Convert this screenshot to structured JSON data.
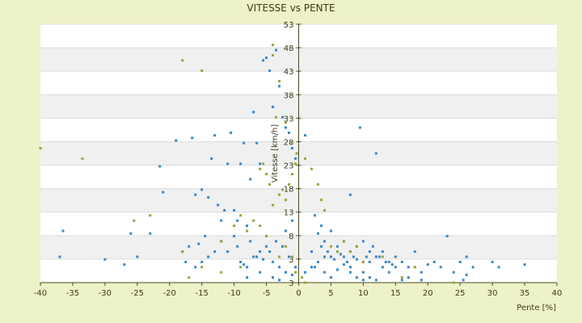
{
  "chart_data": {
    "type": "scatter",
    "title": "VITESSE vs PENTE",
    "xlabel": "Pente [%]",
    "ylabel": "Vitesse [km/h]",
    "xlim": [
      -40,
      40
    ],
    "ylim": [
      3,
      53
    ],
    "x_ticks": [
      "-40",
      "-35",
      "-30",
      "-25",
      "-20",
      "-15",
      "-10",
      "-5",
      "0",
      "5",
      "10",
      "15",
      "20",
      "25",
      "30",
      "35",
      "40"
    ],
    "y_ticks": [
      "3",
      "3",
      "8",
      "13",
      "18",
      "23",
      "28",
      "33",
      "38",
      "43",
      "48",
      "53"
    ],
    "grid": "horizontal bands",
    "legend": "none",
    "colors": {
      "series_blue": "#3a86c8",
      "series_olive": "#9aa33a",
      "band": "#f0f0f0",
      "plot_bg": "#ffffff",
      "page_bg": "#eef2c8"
    },
    "series": [
      {
        "color": "#3a86c8",
        "points": [
          [
            -36.5,
            13
          ],
          [
            -37,
            8
          ],
          [
            -30,
            7.5
          ],
          [
            -27,
            6.5
          ],
          [
            -26,
            12.5
          ],
          [
            -25,
            8
          ],
          [
            -23,
            12.5
          ],
          [
            -21.5,
            25.5
          ],
          [
            -21,
            20.5
          ],
          [
            -19,
            30.5
          ],
          [
            -18,
            9
          ],
          [
            -17.5,
            7
          ],
          [
            -16.5,
            31
          ],
          [
            -16,
            20
          ],
          [
            -15.5,
            10.5
          ],
          [
            -15,
            21
          ],
          [
            -14.5,
            12
          ],
          [
            -14,
            19.5
          ],
          [
            -13.5,
            27
          ],
          [
            -13,
            31.5
          ],
          [
            -12.5,
            18
          ],
          [
            -12,
            15
          ],
          [
            -11.5,
            17
          ],
          [
            -11,
            26
          ],
          [
            -10.5,
            32
          ],
          [
            -10,
            17
          ],
          [
            -9.5,
            15
          ],
          [
            -9,
            26
          ],
          [
            -8.5,
            30
          ],
          [
            -8,
            14
          ],
          [
            -7.5,
            23
          ],
          [
            -7,
            36
          ],
          [
            -6.5,
            30
          ],
          [
            -6,
            26
          ],
          [
            -5.5,
            46
          ],
          [
            -5,
            46.5
          ],
          [
            -4.5,
            44
          ],
          [
            -4,
            37
          ],
          [
            -3.5,
            48
          ],
          [
            -3,
            41
          ],
          [
            -2.5,
            35
          ],
          [
            -2,
            33
          ],
          [
            -1.5,
            32
          ],
          [
            -1,
            29
          ],
          [
            -0.5,
            27
          ],
          [
            -9,
            7
          ],
          [
            -8,
            6
          ],
          [
            -7,
            8
          ],
          [
            -6,
            9
          ],
          [
            -5,
            10
          ],
          [
            -4,
            7
          ],
          [
            -3,
            6
          ],
          [
            -2,
            5
          ],
          [
            -1,
            4.5
          ],
          [
            -12,
            11
          ],
          [
            -13,
            9
          ],
          [
            -14,
            8
          ],
          [
            -15,
            7
          ],
          [
            -16,
            6
          ],
          [
            -17,
            10
          ],
          [
            -11,
            9
          ],
          [
            -10,
            12
          ],
          [
            -9.5,
            10
          ],
          [
            -8.5,
            6.5
          ],
          [
            -7.5,
            11
          ],
          [
            -6.5,
            8
          ],
          [
            -5.5,
            7.5
          ],
          [
            -4.5,
            9
          ],
          [
            -3.5,
            11
          ],
          [
            -2.5,
            10
          ],
          [
            -1.5,
            8
          ],
          [
            -0.5,
            6
          ],
          [
            -8,
            4
          ],
          [
            -6,
            5
          ],
          [
            -4,
            4
          ],
          [
            -3,
            3.5
          ],
          [
            -2,
            13
          ],
          [
            -1,
            15
          ],
          [
            1,
            31.5
          ],
          [
            2,
            9
          ],
          [
            2.5,
            16
          ],
          [
            3,
            12.5
          ],
          [
            3.5,
            10
          ],
          [
            4,
            8
          ],
          [
            4.5,
            9
          ],
          [
            5,
            8
          ],
          [
            5.5,
            7.5
          ],
          [
            6,
            9
          ],
          [
            6.5,
            8.5
          ],
          [
            7,
            8
          ],
          [
            7.5,
            7
          ],
          [
            8,
            9
          ],
          [
            8.5,
            8
          ],
          [
            9,
            7.5
          ],
          [
            9.5,
            33
          ],
          [
            10,
            11
          ],
          [
            10.5,
            8
          ],
          [
            11,
            7
          ],
          [
            11.5,
            10
          ],
          [
            12,
            28
          ],
          [
            12.5,
            8
          ],
          [
            13,
            6
          ],
          [
            13.5,
            7
          ],
          [
            14,
            5
          ],
          [
            14.5,
            6.5
          ],
          [
            15,
            8
          ],
          [
            16,
            7
          ],
          [
            17,
            6
          ],
          [
            18,
            9
          ],
          [
            19,
            5
          ],
          [
            20,
            6.5
          ],
          [
            21,
            7
          ],
          [
            22,
            6
          ],
          [
            23,
            12
          ],
          [
            24,
            5
          ],
          [
            25,
            7
          ],
          [
            26,
            4.5
          ],
          [
            27,
            6
          ],
          [
            30,
            7
          ],
          [
            31,
            6
          ],
          [
            35,
            6.5
          ],
          [
            4,
            11
          ],
          [
            5,
            13
          ],
          [
            6,
            10
          ],
          [
            7,
            11
          ],
          [
            8,
            6
          ],
          [
            9,
            10
          ],
          [
            10,
            7
          ],
          [
            11,
            9
          ],
          [
            12,
            8
          ],
          [
            13,
            9
          ],
          [
            14,
            7
          ],
          [
            15,
            6
          ],
          [
            3,
            7
          ],
          [
            2,
            6
          ],
          [
            1,
            5
          ],
          [
            4,
            5
          ],
          [
            5,
            4
          ],
          [
            6,
            5.5
          ],
          [
            7,
            6.5
          ],
          [
            8,
            5
          ],
          [
            9,
            4
          ],
          [
            3.5,
            14
          ],
          [
            2.5,
            6
          ],
          [
            10,
            5
          ],
          [
            17,
            4
          ],
          [
            19,
            3.5
          ],
          [
            25.5,
            3.5
          ],
          [
            26,
            8
          ],
          [
            8,
            20
          ],
          [
            10,
            3.5
          ],
          [
            11,
            4
          ],
          [
            12,
            3.5
          ],
          [
            16,
            3.5
          ]
        ]
      },
      {
        "color": "#9aa33a",
        "points": [
          [
            -40,
            29
          ],
          [
            -33.5,
            27
          ],
          [
            -25.5,
            15
          ],
          [
            -23,
            16
          ],
          [
            -18,
            46
          ],
          [
            -15,
            44
          ],
          [
            -12,
            11
          ],
          [
            -10,
            14
          ],
          [
            -9,
            16
          ],
          [
            -8,
            13
          ],
          [
            -7,
            15
          ],
          [
            -6,
            25
          ],
          [
            -5.5,
            26
          ],
          [
            -5,
            24
          ],
          [
            -4.5,
            22
          ],
          [
            -4,
            18
          ],
          [
            -3.5,
            35
          ],
          [
            -3,
            20
          ],
          [
            -2.5,
            21
          ],
          [
            -2,
            19
          ],
          [
            -1.5,
            22
          ],
          [
            -1,
            24
          ],
          [
            -0.5,
            26
          ],
          [
            -0.3,
            28
          ],
          [
            -4,
            49
          ],
          [
            -3,
            42
          ],
          [
            -4,
            47
          ],
          [
            -2,
            34
          ],
          [
            -1,
            30
          ],
          [
            1,
            27
          ],
          [
            2,
            25
          ],
          [
            3,
            22
          ],
          [
            3.5,
            19
          ],
          [
            4,
            17
          ],
          [
            5,
            10
          ],
          [
            6,
            9
          ],
          [
            7,
            11
          ],
          [
            8,
            9
          ],
          [
            9,
            10
          ],
          [
            10,
            7
          ],
          [
            13,
            8
          ],
          [
            16,
            4
          ],
          [
            18,
            6
          ],
          [
            24,
            3
          ],
          [
            1,
            3
          ],
          [
            0.5,
            4
          ],
          [
            -0.5,
            5
          ],
          [
            -1,
            8
          ],
          [
            -2,
            10
          ],
          [
            -3,
            8
          ],
          [
            -5,
            12
          ],
          [
            -6,
            14
          ],
          [
            -9,
            6
          ],
          [
            -12,
            5
          ],
          [
            -15,
            6
          ],
          [
            -17,
            4
          ],
          [
            -18,
            9
          ]
        ]
      }
    ]
  }
}
